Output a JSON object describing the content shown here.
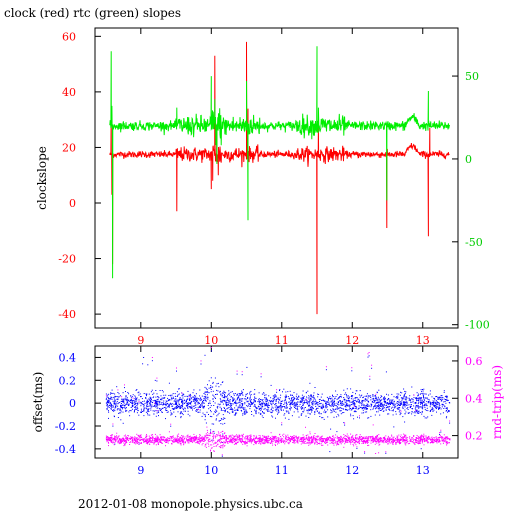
{
  "window": {
    "title": "clock (red) rtc (green) slopes",
    "footer": "2012-01-08 monopole.physics.ubc.ca"
  },
  "colors": {
    "axis_black": "#000000",
    "red": "#ff0000",
    "green": "#00ee00",
    "blue": "#0000ff",
    "magenta": "#ff00ff"
  },
  "chart_data": [
    {
      "type": "line",
      "title": "clock (red) rtc (green) slopes",
      "xlim": [
        8.35,
        13.5
      ],
      "ylim_left": [
        -45,
        63
      ],
      "ylim_right": [
        -102,
        79
      ],
      "ylabel": "clockslope",
      "x_ticks": [
        9,
        10,
        11,
        12,
        13
      ],
      "y_ticks_left": [
        -40,
        -20,
        0,
        20,
        40,
        60
      ],
      "y_ticks_right": [
        -100,
        -50,
        0,
        50
      ],
      "series": [
        {
          "name": "clock",
          "color": "#ff0000",
          "axis": "left",
          "baseline": 17.5,
          "noise": 0.6,
          "spikes": [
            [
              8.58,
              33
            ],
            [
              8.59,
              3
            ],
            [
              8.6,
              -22
            ],
            [
              9.51,
              -3
            ],
            [
              10.0,
              5
            ],
            [
              10.02,
              8
            ],
            [
              10.05,
              53
            ],
            [
              10.08,
              27
            ],
            [
              10.1,
              10
            ],
            [
              10.5,
              58
            ],
            [
              10.52,
              34
            ],
            [
              11.5,
              -40
            ],
            [
              11.52,
              28
            ],
            [
              12.49,
              -9
            ],
            [
              13.08,
              -12
            ],
            [
              13.1,
              27
            ]
          ]
        },
        {
          "name": "rtc",
          "color": "#00ee00",
          "axis": "right",
          "baseline": 20,
          "noise": 1.4,
          "spikes": [
            [
              8.58,
              65
            ],
            [
              8.59,
              32
            ],
            [
              8.6,
              -72
            ],
            [
              9.51,
              31
            ],
            [
              10.0,
              50
            ],
            [
              10.05,
              36
            ],
            [
              10.08,
              -3
            ],
            [
              10.5,
              47
            ],
            [
              10.52,
              -37
            ],
            [
              11.5,
              68
            ],
            [
              11.52,
              31
            ],
            [
              12.49,
              -25
            ],
            [
              13.08,
              41
            ]
          ]
        }
      ]
    },
    {
      "type": "scatter",
      "xlim": [
        8.35,
        13.5
      ],
      "ylim_left": [
        -0.48,
        0.5
      ],
      "ylim_right": [
        0.08,
        0.68
      ],
      "ylabel": "offset(ms)",
      "ylabel_right": "rnd-trip(ms)",
      "x_ticks": [
        9,
        10,
        11,
        12,
        13
      ],
      "y_ticks_left": [
        -0.4,
        -0.2,
        0,
        0.2,
        0.4
      ],
      "y_ticks_right": [
        0.2,
        0.4,
        0.6
      ],
      "series": [
        {
          "name": "offset",
          "color": "#0000ff",
          "axis": "left",
          "center": 0.0,
          "spread": 0.05,
          "range": [
            -0.46,
            0.47
          ]
        },
        {
          "name": "rnd-trip",
          "color": "#ff00ff",
          "axis": "right",
          "center": 0.18,
          "spread": 0.012,
          "range": [
            0.1,
            0.68
          ]
        }
      ]
    }
  ]
}
